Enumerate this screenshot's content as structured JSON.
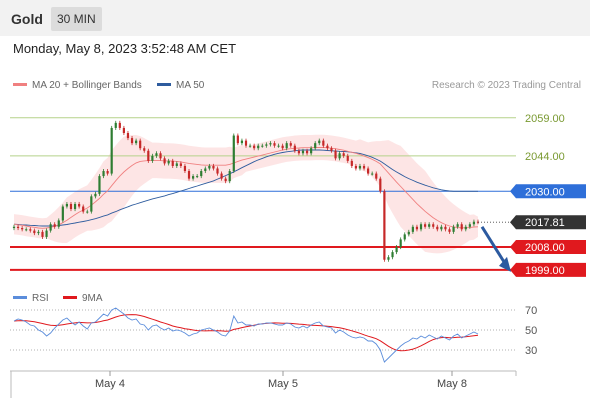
{
  "header": {
    "title": "Gold",
    "timeframe": "30 MIN"
  },
  "date_line": "Monday, May 8, 2023 3:52:48 AM CET",
  "credit": "Research © 2023 Trading Central",
  "colors": {
    "bollinger": "#f08080",
    "ma50": "#2e5c9e",
    "band_fill": "#fde0e0",
    "up": "#2e7d32",
    "down": "#c62828",
    "resistance": "#b5d28a",
    "pivot": "#2e6fd9",
    "support": "#e0191e",
    "rsi": "#5b8ddb",
    "rsi_ma": "#e0191e"
  },
  "chart_data": [
    {
      "type": "candlestick",
      "legend": [
        {
          "name": "MA 20 + Bollinger Bands",
          "color": "#f08080"
        },
        {
          "name": "MA 50",
          "color": "#2e5c9e"
        }
      ],
      "x_ticks": [
        "May 4",
        "May 5",
        "May 8"
      ],
      "ylim": [
        1995,
        2068
      ],
      "levels": [
        {
          "value": 2059.0,
          "label": "2059.00",
          "kind": "resistance"
        },
        {
          "value": 2044.0,
          "label": "2044.00",
          "kind": "resistance"
        },
        {
          "value": 2030.0,
          "label": "2030.00",
          "kind": "pivot"
        },
        {
          "value": 2008.0,
          "label": "2008.00",
          "kind": "support"
        },
        {
          "value": 1999.0,
          "label": "1999.00",
          "kind": "support"
        }
      ],
      "last_price": {
        "value": 2017.81,
        "label": "2017.81"
      },
      "close": [
        2016,
        2015.5,
        2015,
        2015,
        2014.5,
        2013.5,
        2014,
        2012,
        2014.5,
        2017,
        2016,
        2018.5,
        2024,
        2025,
        2023,
        2025,
        2024,
        2022,
        2022,
        2028,
        2029,
        2036,
        2038,
        2037,
        2055,
        2057,
        2055,
        2053,
        2051,
        2049,
        2050,
        2047,
        2046,
        2042,
        2044,
        2045,
        2043,
        2041,
        2042,
        2040,
        2041,
        2040,
        2038,
        2035,
        2036,
        2036,
        2038,
        2039,
        2040,
        2039,
        2037,
        2035,
        2034,
        2038,
        2052,
        2049,
        2050,
        2048,
        2048,
        2047,
        2048,
        2048,
        2048.5,
        2049,
        2048,
        2048,
        2047,
        2049,
        2048,
        2046,
        2045,
        2046,
        2045,
        2047,
        2049,
        2050,
        2048,
        2047,
        2046,
        2043,
        2045,
        2044,
        2042,
        2040,
        2039,
        2040,
        2039,
        2037,
        2037,
        2035,
        2030,
        2003,
        2004,
        2006,
        2008,
        2011,
        2013,
        2014,
        2016,
        2015,
        2017,
        2016,
        2017,
        2016,
        2015,
        2016,
        2015,
        2014,
        2016,
        2017,
        2015,
        2016,
        2017,
        2018,
        2017.81
      ],
      "ma20": [
        2017,
        2016.8,
        2016.6,
        2016.3,
        2016,
        2015.8,
        2015.5,
        2015.4,
        2015.5,
        2015.8,
        2016.2,
        2016.8,
        2017.6,
        2018.6,
        2019.7,
        2020.8,
        2021.8,
        2022.6,
        2023.4,
        2024.5,
        2025.8,
        2027.2,
        2028.8,
        2030.2,
        2032.2,
        2034.2,
        2036,
        2037.6,
        2039,
        2040.2,
        2041.2,
        2041.8,
        2042,
        2042.1,
        2042.2,
        2042.2,
        2042.1,
        2042,
        2042,
        2041.9,
        2041.8,
        2041.6,
        2041.3,
        2041,
        2040.8,
        2040.6,
        2040.4,
        2040.3,
        2040.3,
        2040.3,
        2040.3,
        2040.3,
        2040.3,
        2040.6,
        2041.2,
        2041.8,
        2042.3,
        2042.7,
        2043.1,
        2043.5,
        2043.9,
        2044.3,
        2044.7,
        2045.1,
        2045.5,
        2045.9,
        2046.3,
        2046.6,
        2046.8,
        2047,
        2047.1,
        2047.2,
        2047.2,
        2047.2,
        2047.3,
        2047.3,
        2047.3,
        2047.2,
        2047,
        2046.8,
        2046.5,
        2046.2,
        2045.8,
        2045.4,
        2045,
        2044.5,
        2043.9,
        2043.3,
        2042.6,
        2041.8,
        2040.8,
        2039,
        2037.2,
        2035.4,
        2033.6,
        2031.9,
        2030.2,
        2028.5,
        2026.8,
        2025.1,
        2023.6,
        2022.1,
        2020.8,
        2019.6,
        2018.5,
        2017.6,
        2016.9,
        2016.3,
        2015.9,
        2015.7,
        2015.6,
        2015.6,
        2015.7,
        2015.9,
        2016
      ],
      "ma50": [
        2017,
        2016.9,
        2016.8,
        2016.7,
        2016.6,
        2016.5,
        2016.4,
        2016.3,
        2016.3,
        2016.3,
        2016.4,
        2016.5,
        2016.7,
        2016.9,
        2017.2,
        2017.5,
        2017.8,
        2018.1,
        2018.4,
        2018.8,
        2019.2,
        2019.7,
        2020.2,
        2020.7,
        2021.4,
        2022,
        2022.7,
        2023.3,
        2023.9,
        2024.5,
        2025,
        2025.5,
        2026,
        2026.5,
        2027,
        2027.4,
        2027.8,
        2028.2,
        2028.7,
        2029.1,
        2029.6,
        2030.1,
        2030.6,
        2031.1,
        2031.6,
        2032.1,
        2032.6,
        2033.1,
        2033.6,
        2034.1,
        2034.8,
        2035.5,
        2036.2,
        2036.9,
        2037.7,
        2038.5,
        2039.3,
        2040.1,
        2040.9,
        2041.7,
        2042.4,
        2043,
        2043.6,
        2044.1,
        2044.6,
        2045,
        2045.3,
        2045.6,
        2045.8,
        2046,
        2046.2,
        2046.3,
        2046.3,
        2046.3,
        2046.3,
        2046.3,
        2046.2,
        2046.1,
        2046,
        2045.9,
        2045.8,
        2045.7,
        2045.6,
        2045.4,
        2045.2,
        2044.9,
        2044.5,
        2044,
        2043.4,
        2042.7,
        2041.9,
        2040.8,
        2039.7,
        2038.6,
        2037.6,
        2036.7,
        2035.8,
        2035,
        2034.3,
        2033.6,
        2033,
        2032.4,
        2031.9,
        2031.4,
        2031,
        2030.6,
        2030.3,
        2030.1,
        2030,
        2030,
        2030,
        2030,
        2030,
        2030,
        2030
      ],
      "band_width": [
        4,
        4,
        4,
        4,
        4,
        4,
        4,
        4,
        4,
        5,
        6,
        7,
        8,
        9,
        9,
        9,
        9,
        9,
        9,
        10,
        11,
        12,
        13,
        13,
        14,
        14,
        14,
        14,
        13,
        12,
        11,
        10,
        9,
        8,
        7,
        7,
        7,
        7,
        7,
        7,
        7,
        7,
        7,
        7,
        7,
        7,
        7,
        7,
        7,
        7,
        7,
        7,
        7,
        7,
        6,
        6,
        6,
        5,
        5,
        5,
        5,
        5,
        5,
        5,
        5,
        5,
        5,
        5,
        5,
        5,
        5,
        5,
        5,
        5,
        5,
        5,
        5,
        5,
        5,
        5,
        5,
        5,
        5,
        5,
        5,
        6,
        6,
        6,
        7,
        8,
        9,
        11,
        13,
        14,
        15,
        16,
        16,
        16,
        16,
        16,
        16,
        16,
        15,
        14,
        13,
        12,
        11,
        10,
        9,
        8,
        7,
        6,
        5,
        5,
        4
      ]
    },
    {
      "type": "line",
      "legend": [
        {
          "name": "RSI",
          "color": "#5b8ddb"
        },
        {
          "name": "9MA",
          "color": "#e0191e"
        }
      ],
      "ylim": [
        10,
        80
      ],
      "levels": [
        {
          "value": 70,
          "label": "70"
        },
        {
          "value": 50,
          "label": "50"
        },
        {
          "value": 30,
          "label": "30"
        }
      ],
      "rsi": [
        59,
        61,
        60,
        58,
        55,
        54,
        50,
        48,
        44,
        47,
        52,
        56,
        60,
        62,
        58,
        55,
        58,
        54,
        51,
        57,
        58,
        62,
        66,
        64,
        70,
        72,
        69,
        66,
        62,
        60,
        61,
        56,
        55,
        50,
        54,
        55,
        52,
        50,
        52,
        49,
        50,
        49,
        47,
        44,
        46,
        47,
        50,
        51,
        52,
        50,
        48,
        45,
        44,
        49,
        64,
        57,
        58,
        55,
        55,
        54,
        56,
        56,
        57,
        57,
        56,
        55,
        55,
        57,
        56,
        53,
        52,
        54,
        52,
        55,
        57,
        58,
        54,
        53,
        52,
        47,
        50,
        48,
        45,
        43,
        42,
        43,
        42,
        39,
        39,
        36,
        30,
        18,
        22,
        26,
        30,
        34,
        37,
        39,
        42,
        41,
        44,
        42,
        45,
        43,
        41,
        44,
        42,
        40,
        44,
        46,
        42,
        44,
        46,
        48,
        46
      ],
      "ma9": [
        59,
        59.2,
        59.4,
        59.2,
        58.8,
        58.2,
        57.4,
        56.5,
        55.5,
        54.8,
        54.5,
        54.7,
        55.3,
        56,
        56.6,
        57.1,
        57.6,
        57.4,
        57.1,
        57.2,
        57.5,
        58.2,
        59.2,
        60,
        61.5,
        63,
        64.2,
        65,
        65.3,
        65.4,
        65.2,
        64.5,
        63.5,
        62.1,
        60.8,
        59.5,
        58,
        56.8,
        55.5,
        54,
        53,
        52.2,
        51.3,
        50.7,
        50,
        49.4,
        49.2,
        49.1,
        49.3,
        49.3,
        49.3,
        49.1,
        48.8,
        49,
        50.6,
        51.4,
        52.4,
        53.2,
        54,
        54.8,
        55.6,
        56.2,
        56.6,
        56.9,
        57.1,
        57,
        56.8,
        56.7,
        56.6,
        56.3,
        55.9,
        55.6,
        55.1,
        54.8,
        54.6,
        54.4,
        54.1,
        53.8,
        53.4,
        52.8,
        52.2,
        51.4,
        50.3,
        49.2,
        48,
        46.7,
        45.2,
        43.8,
        42.6,
        41.3,
        39.2,
        36.4,
        33.7,
        31.4,
        29.8,
        29.2,
        29.4,
        30,
        30.9,
        32.3,
        34.2,
        36.3,
        38.6,
        40.4,
        41.7,
        42.4,
        42.6,
        42.3,
        42.4,
        42.7,
        42.9,
        43.3,
        43.7,
        44.2,
        44.8
      ]
    }
  ]
}
